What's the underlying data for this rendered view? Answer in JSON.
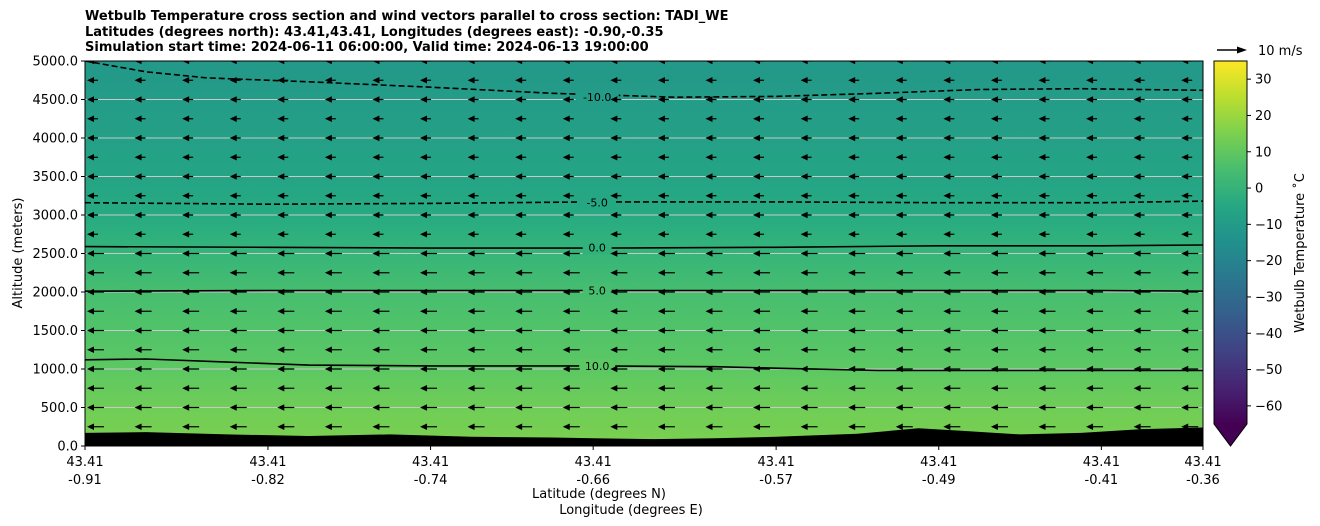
{
  "title_lines": [
    "Wetbulb Temperature cross section and wind vectors parallel to cross section: TADI_WE",
    "Latitudes (degrees north): 43.41,43.41, Longitudes (degrees east): -0.90,-0.35",
    "Simulation start time: 2024-06-11 06:00:00, Valid time: 2024-06-13 19:00:00"
  ],
  "chart_data": {
    "type": "heatmap",
    "overlays": [
      "contour",
      "quiver"
    ],
    "ylabel": "Altitude (meters)",
    "xlabel_lines": [
      "Latitude (degrees N)",
      "Longitude (degrees E)"
    ],
    "ylim": [
      0,
      5000
    ],
    "y_ticks": [
      "0.0",
      "500.0",
      "1000.0",
      "1500.0",
      "2000.0",
      "2500.0",
      "3000.0",
      "3500.0",
      "4000.0",
      "4500.0",
      "5000.0"
    ],
    "y_tick_values": [
      0,
      500,
      1000,
      1500,
      2000,
      2500,
      3000,
      3500,
      4000,
      4500,
      5000
    ],
    "x_ticks": [
      {
        "lat": "43.41",
        "lon": "-0.91"
      },
      {
        "lat": "43.41",
        "lon": "-0.82"
      },
      {
        "lat": "43.41",
        "lon": "-0.74"
      },
      {
        "lat": "43.41",
        "lon": "-0.66"
      },
      {
        "lat": "43.41",
        "lon": "-0.57"
      },
      {
        "lat": "43.41",
        "lon": "-0.49"
      },
      {
        "lat": "43.41",
        "lon": "-0.41"
      },
      {
        "lat": "43.41",
        "lon": "-0.36"
      }
    ],
    "x_tick_lon_values": [
      -0.91,
      -0.82,
      -0.74,
      -0.66,
      -0.57,
      -0.49,
      -0.41,
      -0.36
    ],
    "xlim_lon": [
      -0.91,
      -0.36
    ],
    "grid": "horizontal",
    "colorbar": {
      "label": "Wetbulb Temperature $^\\circ$C",
      "label_display": "Wetbulb Temperature ˚C",
      "colormap": "viridis",
      "range": [
        -65,
        35
      ],
      "ticks": [
        "30",
        "20",
        "10",
        "0",
        "−10",
        "−20",
        "−30",
        "−40",
        "−50",
        "−60"
      ],
      "tick_values": [
        30,
        20,
        10,
        0,
        -10,
        -20,
        -30,
        -40,
        -50,
        -60
      ],
      "extend": "min"
    },
    "temperature_profile": [
      {
        "altitude": 0,
        "temperature": 15
      },
      {
        "altitude": 500,
        "temperature": 13
      },
      {
        "altitude": 1000,
        "temperature": 10
      },
      {
        "altitude": 1500,
        "temperature": 7.5
      },
      {
        "altitude": 2000,
        "temperature": 5
      },
      {
        "altitude": 2500,
        "temperature": 1
      },
      {
        "altitude": 3000,
        "temperature": -4
      },
      {
        "altitude": 3500,
        "temperature": -6.5
      },
      {
        "altitude": 4000,
        "temperature": -8
      },
      {
        "altitude": 4500,
        "temperature": -10
      },
      {
        "altitude": 5000,
        "temperature": -11
      }
    ],
    "contours": [
      {
        "label": "-10.0",
        "level": -10,
        "style": "dashed",
        "points": [
          [
            -0.91,
            5000
          ],
          [
            -0.88,
            4860
          ],
          [
            -0.85,
            4780
          ],
          [
            -0.8,
            4730
          ],
          [
            -0.74,
            4660
          ],
          [
            -0.68,
            4580
          ],
          [
            -0.62,
            4530
          ],
          [
            -0.57,
            4540
          ],
          [
            -0.52,
            4580
          ],
          [
            -0.47,
            4630
          ],
          [
            -0.42,
            4640
          ],
          [
            -0.36,
            4620
          ]
        ],
        "label_at": [
          -0.66,
          4530
        ]
      },
      {
        "label": "-5.0",
        "level": -5,
        "style": "dashed",
        "points": [
          [
            -0.91,
            3160
          ],
          [
            -0.82,
            3140
          ],
          [
            -0.74,
            3150
          ],
          [
            -0.66,
            3170
          ],
          [
            -0.57,
            3170
          ],
          [
            -0.49,
            3160
          ],
          [
            -0.41,
            3160
          ],
          [
            -0.36,
            3180
          ]
        ],
        "label_at": [
          -0.66,
          3160
        ]
      },
      {
        "label": "0.0",
        "level": 0,
        "style": "solid",
        "points": [
          [
            -0.91,
            2590
          ],
          [
            -0.82,
            2580
          ],
          [
            -0.74,
            2570
          ],
          [
            -0.66,
            2570
          ],
          [
            -0.57,
            2580
          ],
          [
            -0.49,
            2600
          ],
          [
            -0.41,
            2600
          ],
          [
            -0.36,
            2610
          ]
        ],
        "label_at": [
          -0.66,
          2580
        ]
      },
      {
        "label": "5.0",
        "level": 5,
        "style": "solid",
        "points": [
          [
            -0.91,
            2010
          ],
          [
            -0.82,
            2020
          ],
          [
            -0.74,
            2020
          ],
          [
            -0.66,
            2020
          ],
          [
            -0.57,
            2020
          ],
          [
            -0.49,
            2020
          ],
          [
            -0.41,
            2020
          ],
          [
            -0.36,
            2010
          ]
        ],
        "label_at": [
          -0.66,
          2020
        ]
      },
      {
        "label": "10.0",
        "level": 10,
        "style": "solid",
        "points": [
          [
            -0.91,
            1120
          ],
          [
            -0.88,
            1130
          ],
          [
            -0.84,
            1090
          ],
          [
            -0.8,
            1050
          ],
          [
            -0.74,
            1040
          ],
          [
            -0.66,
            1040
          ],
          [
            -0.6,
            1030
          ],
          [
            -0.57,
            1010
          ],
          [
            -0.52,
            980
          ],
          [
            -0.47,
            980
          ],
          [
            -0.42,
            980
          ],
          [
            -0.36,
            980
          ]
        ],
        "label_at": [
          -0.66,
          1040
        ]
      }
    ],
    "terrain": [
      [
        -0.91,
        170
      ],
      [
        -0.88,
        180
      ],
      [
        -0.84,
        150
      ],
      [
        -0.8,
        130
      ],
      [
        -0.76,
        150
      ],
      [
        -0.72,
        120
      ],
      [
        -0.68,
        110
      ],
      [
        -0.66,
        100
      ],
      [
        -0.63,
        90
      ],
      [
        -0.6,
        100
      ],
      [
        -0.57,
        120
      ],
      [
        -0.53,
        160
      ],
      [
        -0.5,
        230
      ],
      [
        -0.48,
        200
      ],
      [
        -0.45,
        150
      ],
      [
        -0.42,
        170
      ],
      [
        -0.39,
        220
      ],
      [
        -0.36,
        240
      ]
    ],
    "wind_vector_key": "10 m/s",
    "wind_vectors": {
      "direction": "westward",
      "speed_ms": 5
    }
  }
}
